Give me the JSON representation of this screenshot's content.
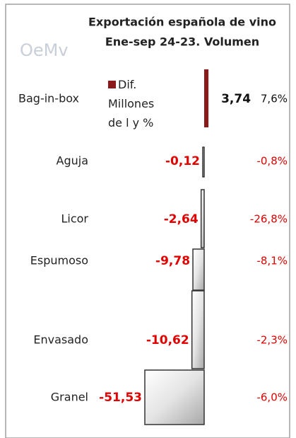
{
  "chart_data": {
    "type": "bar",
    "orientation": "horizontal",
    "title": "Exportación española de vino",
    "subtitle": "Ene-sep 24-23. Volumen",
    "logo": "OeMv",
    "categories": [
      "Bag-in-box",
      "Aguja",
      "Licor",
      "Espumoso",
      "Envasado",
      "Granel"
    ],
    "series": [
      {
        "name": "Dif. Millones de l y %",
        "color": "#8b1a1a",
        "values": [
          3.74,
          -0.12,
          -2.64,
          -9.78,
          -10.62,
          -51.53
        ],
        "value_labels": [
          "3,74",
          "-0,12",
          "-2,64",
          "-9,78",
          "-10,62",
          "-51,53"
        ]
      },
      {
        "values": [
          7.6,
          -0.8,
          -26.8,
          -8.1,
          -2.3,
          -6.0
        ],
        "value_labels": [
          "7,6%",
          "-0,8%",
          "-26,8%",
          "-8,1%",
          "-2,3%",
          "-6,0%"
        ]
      }
    ],
    "negative_color": "#e00000"
  }
}
